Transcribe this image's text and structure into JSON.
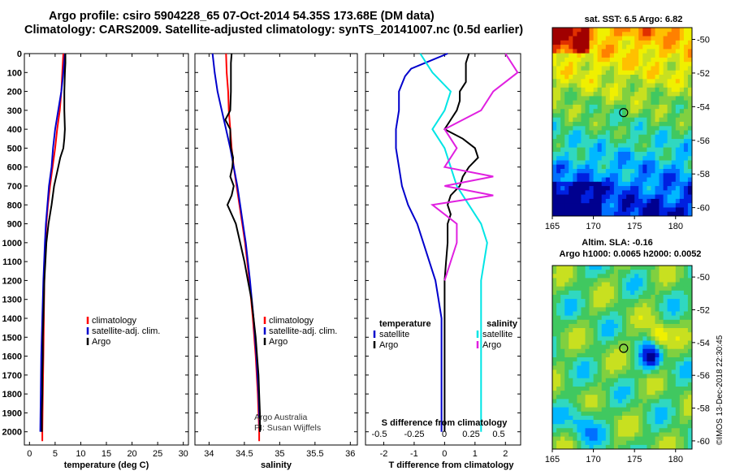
{
  "header": {
    "line1": "Argo profile: csiro 5904228_65 07-Oct-2014 54.35S 173.68E (DM data)",
    "line2": "Climatology: CARS2009. Satellite-adjusted climatology: synTS_20141007.nc (0.5d earlier)"
  },
  "credit": "©IMOS 13-Dec-2018 22:30:45",
  "colors": {
    "argo": "#000000",
    "climatology": "#ff0000",
    "satellite": "#0000cc",
    "sat_salinity": "#00e5e5",
    "argo_salinity": "#e020e0"
  },
  "chart_data": [
    {
      "type": "line",
      "name": "temperature-profile",
      "xlabel": "temperature (deg C)",
      "ylabel": "",
      "xlim": [
        -1,
        31
      ],
      "ylim": [
        2070,
        0
      ],
      "xticks": [
        0,
        5,
        10,
        15,
        20,
        25,
        30
      ],
      "yticks": [
        0,
        100,
        200,
        300,
        400,
        500,
        600,
        700,
        800,
        900,
        1000,
        1100,
        1200,
        1300,
        1400,
        1500,
        1600,
        1700,
        1800,
        1900,
        2000
      ],
      "legend": [
        "climatology",
        "satellite-adj. clim.",
        "Argo"
      ],
      "legend_position": "lower-middle",
      "series": [
        {
          "name": "climatology",
          "color": "#ff0000",
          "depth": [
            0,
            100,
            200,
            300,
            400,
            500,
            600,
            700,
            800,
            900,
            1000,
            1200,
            1400,
            1600,
            1800,
            2000,
            2050
          ],
          "values": [
            6.6,
            6.4,
            6.2,
            5.9,
            5.4,
            5.0,
            4.5,
            4.0,
            3.6,
            3.3,
            3.1,
            2.9,
            2.8,
            2.7,
            2.6,
            2.5,
            2.5
          ]
        },
        {
          "name": "satellite-adj. clim.",
          "color": "#0000cc",
          "depth": [
            0,
            100,
            200,
            300,
            400,
            500,
            600,
            700,
            800,
            900,
            1000,
            1200,
            1400,
            1600,
            1800,
            2000
          ],
          "values": [
            6.9,
            6.6,
            6.2,
            5.6,
            5.0,
            4.6,
            4.3,
            3.8,
            3.5,
            3.2,
            3.0,
            2.7,
            2.5,
            2.3,
            2.2,
            2.1
          ]
        },
        {
          "name": "Argo",
          "color": "#000000",
          "depth": [
            0,
            50,
            100,
            200,
            300,
            400,
            450,
            500,
            550,
            600,
            700,
            800,
            900,
            1000,
            1100,
            1200,
            1300,
            1400,
            1500,
            1600,
            1700,
            1800,
            1900,
            2000
          ],
          "values": [
            7.0,
            7.0,
            6.9,
            6.8,
            6.8,
            6.9,
            6.8,
            6.6,
            6.0,
            5.6,
            4.8,
            4.3,
            3.7,
            3.3,
            3.1,
            2.9,
            2.8,
            2.7,
            2.6,
            2.6,
            2.5,
            2.5,
            2.4,
            2.4
          ]
        }
      ]
    },
    {
      "type": "line",
      "name": "salinity-profile",
      "xlabel": "salinity",
      "xlim": [
        33.8,
        36.1
      ],
      "ylim": [
        2070,
        0
      ],
      "xticks": [
        34,
        34.5,
        35,
        35.5,
        36
      ],
      "legend": [
        "climatology",
        "satellite-adj. clim.",
        "Argo"
      ],
      "legend_position": "lower-middle",
      "note_line1": "Argo Australia",
      "note_line2": "PI: Susan Wijffels",
      "series": [
        {
          "name": "climatology",
          "color": "#ff0000",
          "depth": [
            0,
            100,
            200,
            300,
            400,
            500,
            600,
            700,
            800,
            900,
            1000,
            1200,
            1400,
            1600,
            1800,
            2000,
            2050
          ],
          "values": [
            34.24,
            34.25,
            34.27,
            34.28,
            34.3,
            34.32,
            34.35,
            34.39,
            34.43,
            34.47,
            34.51,
            34.57,
            34.62,
            34.66,
            34.69,
            34.71,
            34.71
          ]
        },
        {
          "name": "satellite-adj. clim.",
          "color": "#0000cc",
          "depth": [
            0,
            100,
            200,
            300,
            400,
            500,
            600,
            700,
            800,
            900,
            1000,
            1200,
            1400,
            1600,
            1800,
            2000
          ],
          "values": [
            34.05,
            34.08,
            34.12,
            34.18,
            34.24,
            34.3,
            34.35,
            34.4,
            34.44,
            34.48,
            34.52,
            34.58,
            34.63,
            34.67,
            34.7,
            34.72
          ]
        },
        {
          "name": "Argo",
          "color": "#000000",
          "depth": [
            0,
            50,
            100,
            200,
            300,
            350,
            400,
            450,
            500,
            550,
            600,
            650,
            700,
            750,
            800,
            850,
            900,
            1000,
            1100,
            1200,
            1300,
            1400,
            1500,
            1600,
            1700,
            1800,
            1900,
            2000
          ],
          "values": [
            34.32,
            34.31,
            34.31,
            34.31,
            34.3,
            34.23,
            34.3,
            34.3,
            34.31,
            34.34,
            34.33,
            34.3,
            34.35,
            34.32,
            34.26,
            34.32,
            34.38,
            34.44,
            34.5,
            34.55,
            34.6,
            34.63,
            34.66,
            34.68,
            34.7,
            34.71,
            34.72,
            34.72
          ]
        }
      ]
    },
    {
      "type": "line",
      "name": "difference-profile",
      "xlabel": "T difference from climatology",
      "x2label": "S difference from climatology",
      "xlim": [
        -2.6,
        2.5
      ],
      "ylim": [
        2070,
        0
      ],
      "xticks": [
        -2,
        -1,
        0,
        1,
        2
      ],
      "x2ticks": [
        "-0.5",
        "-0.25",
        "0",
        "0.25",
        "0.5"
      ],
      "legend_left_title": "temperature",
      "legend_right_title": "salinity",
      "legend_left": [
        "satellite",
        "Argo"
      ],
      "legend_right": [
        "satellite",
        "Argo"
      ],
      "series": [
        {
          "name": "temperature satellite",
          "color": "#0000cc",
          "depth": [
            0,
            40,
            80,
            120,
            160,
            200,
            300,
            400,
            500,
            600,
            700,
            800,
            900,
            1000,
            1100,
            1200,
            1300,
            1400,
            1500,
            1700,
            2000
          ],
          "values": [
            0.1,
            -0.5,
            -1.1,
            -1.3,
            -1.4,
            -1.5,
            -1.5,
            -1.6,
            -1.6,
            -1.5,
            -1.4,
            -1.2,
            -0.9,
            -0.7,
            -0.5,
            -0.3,
            -0.2,
            -0.1,
            -0.1,
            -0.1,
            -0.1
          ]
        },
        {
          "name": "temperature Argo",
          "color": "#000000",
          "depth": [
            0,
            50,
            100,
            150,
            200,
            250,
            300,
            350,
            400,
            450,
            500,
            550,
            600,
            650,
            700,
            750,
            800,
            850,
            900,
            1000,
            1100,
            1200,
            1400,
            1600,
            1800,
            2000
          ],
          "values": [
            0.8,
            0.7,
            0.7,
            0.7,
            0.5,
            0.5,
            0.4,
            0.2,
            0.0,
            0.6,
            1.0,
            1.1,
            0.8,
            0.6,
            0.5,
            0.2,
            0.1,
            0.2,
            0.1,
            0.1,
            0.05,
            0.0,
            0.0,
            0.0,
            0.0,
            0.0
          ]
        },
        {
          "name": "salinity satellite",
          "color": "#00e5e5",
          "depth": [
            0,
            100,
            200,
            300,
            400,
            500,
            600,
            700,
            800,
            900,
            1000,
            1200,
            1400,
            1600,
            1800,
            2000
          ],
          "values": [
            -0.2,
            -0.1,
            0.05,
            0.0,
            -0.1,
            0.0,
            0.05,
            0.1,
            0.2,
            0.3,
            0.35,
            0.3,
            0.3,
            0.3,
            0.3,
            0.3
          ]
        },
        {
          "name": "salinity Argo",
          "color": "#e020e0",
          "depth": [
            0,
            100,
            200,
            300,
            400,
            500,
            600,
            650,
            700,
            750,
            800,
            850,
            900,
            1000,
            1100,
            1200
          ],
          "values": [
            0.5,
            0.6,
            0.4,
            0.3,
            0.0,
            0.1,
            0.0,
            0.4,
            0.0,
            0.4,
            -0.1,
            0.0,
            0.1,
            0.1,
            0.05,
            0.0
          ]
        }
      ]
    },
    {
      "type": "heatmap",
      "name": "sst-map",
      "title": "sat. SST: 6.5 Argo: 6.82",
      "xlim": [
        165,
        182
      ],
      "ylim": [
        -60.5,
        -49.3
      ],
      "xticks": [
        165,
        170,
        175,
        180
      ],
      "yticks": [
        -50,
        -52,
        -54,
        -56,
        -58,
        -60
      ],
      "profile_location": {
        "lon": 173.68,
        "lat": -54.35
      }
    },
    {
      "type": "heatmap",
      "name": "sla-map",
      "title": "Altim. SLA: -0.16",
      "subtitle": "Argo h1000: 0.0065 h2000: 0.0052",
      "xlim": [
        165,
        182
      ],
      "ylim": [
        -60.5,
        -49.3
      ],
      "xticks": [
        165,
        170,
        175,
        180
      ],
      "yticks": [
        -50,
        -52,
        -54,
        -56,
        -58,
        -60
      ],
      "profile_location": {
        "lon": 173.68,
        "lat": -54.35
      }
    }
  ]
}
